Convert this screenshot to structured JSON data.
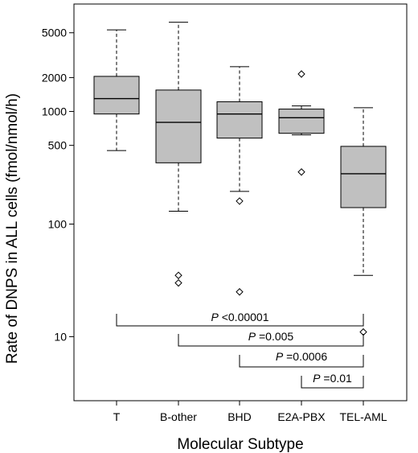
{
  "chart_data": {
    "type": "box",
    "xlabel": "Molecular Subtype",
    "ylabel": "Rate of DNPS in ALL cells (fmol/nmol/h)",
    "yscale": "log",
    "ylim": [
      2.7,
      9000
    ],
    "yticks": [
      10,
      100,
      500,
      1000,
      2000,
      5000
    ],
    "ytick_labels": [
      "10",
      "100",
      "500",
      "1000",
      "2000",
      "5000"
    ],
    "box_color": "#c0c0c0",
    "categories": [
      "T",
      "B-other",
      "BHD",
      "E2A-PBX",
      "TEL-AML"
    ],
    "boxes": [
      {
        "category": "T",
        "whisker_low": 450,
        "q1": 950,
        "median": 1300,
        "q3": 2050,
        "whisker_high": 5300,
        "outliers": []
      },
      {
        "category": "B-other",
        "whisker_low": 130,
        "q1": 350,
        "median": 800,
        "q3": 1550,
        "whisker_high": 6200,
        "outliers": [
          35,
          30
        ]
      },
      {
        "category": "BHD",
        "whisker_low": 195,
        "q1": 580,
        "median": 950,
        "q3": 1220,
        "whisker_high": 2500,
        "outliers": [
          160,
          25
        ]
      },
      {
        "category": "E2A-PBX",
        "whisker_low": 620,
        "q1": 640,
        "median": 880,
        "q3": 1050,
        "whisker_high": 1120,
        "outliers": [
          2150,
          290
        ]
      },
      {
        "category": "TEL-AML",
        "whisker_low": 35,
        "q1": 140,
        "median": 280,
        "q3": 490,
        "whisker_high": 1080,
        "outliers": [
          11
        ]
      }
    ],
    "comparisons": [
      {
        "from": "T",
        "to": "TEL-AML",
        "label_p": "P",
        "label_rest": " <0.00001"
      },
      {
        "from": "B-other",
        "to": "TEL-AML",
        "label_p": "P",
        "label_rest": " =0.005"
      },
      {
        "from": "BHD",
        "to": "TEL-AML",
        "label_p": "P",
        "label_rest": " =0.0006"
      },
      {
        "from": "E2A-PBX",
        "to": "TEL-AML",
        "label_p": "P",
        "label_rest": " =0.01"
      }
    ]
  }
}
